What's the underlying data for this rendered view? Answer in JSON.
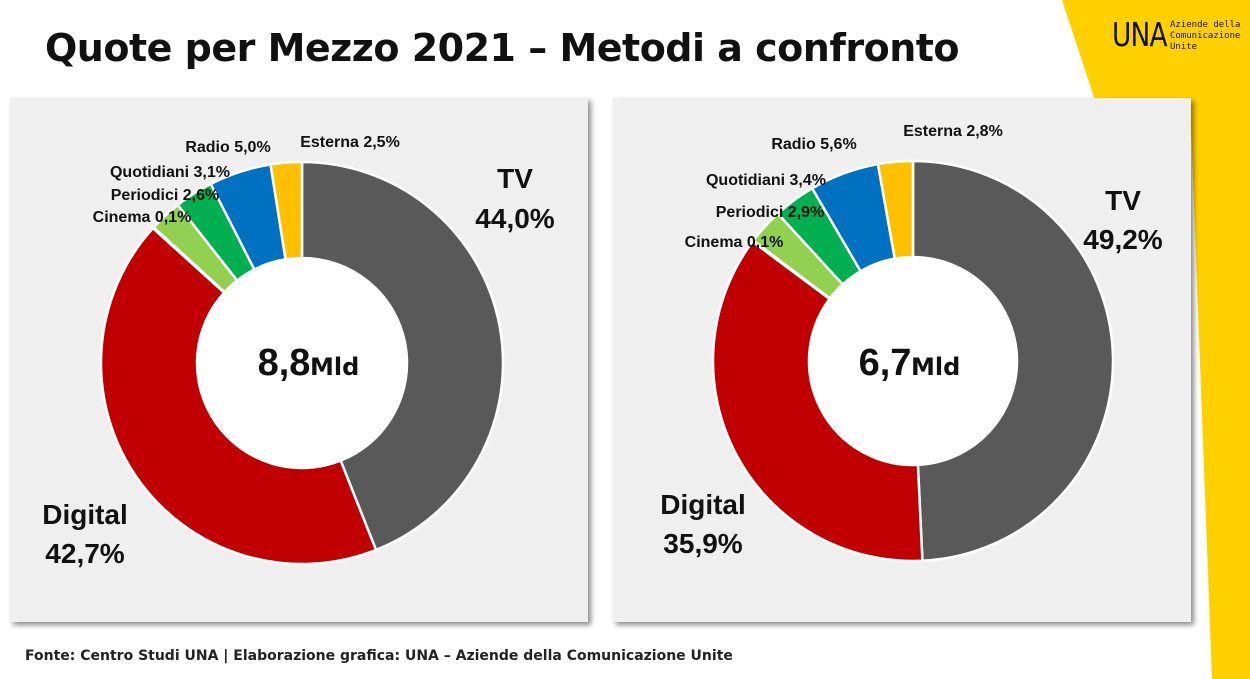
{
  "title": "Quote per Mezzo 2021 – Metodi a confronto",
  "logo": {
    "mark": "UNA",
    "lines": [
      "Aziende della",
      "Comunicazione",
      "Unite"
    ]
  },
  "source": "Fonte: Centro Studi UNA | Elaborazione grafica: UNA – Aziende della Comunicazione Unite",
  "colors": {
    "tv": "#595959",
    "digital": "#c00000",
    "cinema": "#a5d6a7",
    "periodici": "#92d050",
    "quotidiani": "#00b050",
    "radio": "#0070c0",
    "esterna": "#ffc000",
    "band": "#ffd000",
    "panel": "#efefef"
  },
  "chart_data": [
    {
      "type": "pie",
      "donut": true,
      "center_value": "8,8",
      "center_unit": "Mld",
      "slices": [
        {
          "key": "tv",
          "label": "TV",
          "value_text": "44,0%",
          "value": 44.0
        },
        {
          "key": "digital",
          "label": "Digital",
          "value_text": "42,7%",
          "value": 42.7
        },
        {
          "key": "cinema",
          "label": "Cinema",
          "value_text": "0,1%",
          "value": 0.1
        },
        {
          "key": "periodici",
          "label": "Periodici",
          "value_text": "2,6%",
          "value": 2.6
        },
        {
          "key": "quotidiani",
          "label": "Quotidiani",
          "value_text": "3,1%",
          "value": 3.1
        },
        {
          "key": "radio",
          "label": "Radio",
          "value_text": "5,0%",
          "value": 5.0
        },
        {
          "key": "esterna",
          "label": "Esterna",
          "value_text": "2,5%",
          "value": 2.5
        }
      ]
    },
    {
      "type": "pie",
      "donut": true,
      "center_value": "6,7",
      "center_unit": "Mld",
      "slices": [
        {
          "key": "tv",
          "label": "TV",
          "value_text": "49,2%",
          "value": 49.2
        },
        {
          "key": "digital",
          "label": "Digital",
          "value_text": "35,9%",
          "value": 35.9
        },
        {
          "key": "cinema",
          "label": "Cinema",
          "value_text": "0,1%",
          "value": 0.1
        },
        {
          "key": "periodici",
          "label": "Periodici",
          "value_text": "2,9%",
          "value": 2.9
        },
        {
          "key": "quotidiani",
          "label": "Quotidiani",
          "value_text": "3,4%",
          "value": 3.4
        },
        {
          "key": "radio",
          "label": "Radio",
          "value_text": "5,6%",
          "value": 5.6
        },
        {
          "key": "esterna",
          "label": "Esterna",
          "value_text": "2,8%",
          "value": 2.8
        }
      ]
    }
  ]
}
